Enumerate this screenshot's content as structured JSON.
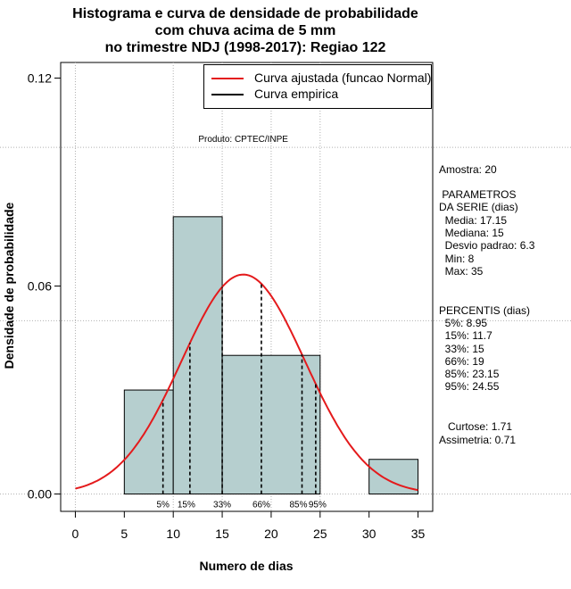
{
  "chart_data": {
    "type": "histogram",
    "title_lines": [
      "Histograma e curva de densidade de probabilidade",
      "com chuva acima de 5 mm",
      "no trimestre NDJ (1998-2017): Regiao 122"
    ],
    "xlabel": "Numero de dias",
    "ylabel": "Densidade de probabilidade",
    "xlim": [
      -1.5,
      36.5
    ],
    "ylim": [
      -0.005,
      0.1245
    ],
    "xticks": [
      0,
      5,
      10,
      15,
      20,
      25,
      30,
      35
    ],
    "yticks": [
      0.0,
      0.06,
      0.12
    ],
    "ytick_labels": [
      "0.00",
      "0.06",
      "0.12"
    ],
    "gridlines_x": [
      0,
      10,
      15,
      20,
      25
    ],
    "gridlines_y": [
      0.0,
      0.05,
      0.1
    ],
    "bins": [
      {
        "x0": 5,
        "x1": 10,
        "density": 0.03
      },
      {
        "x0": 10,
        "x1": 15,
        "density": 0.08
      },
      {
        "x0": 15,
        "x1": 25,
        "density": 0.04
      },
      {
        "x0": 30,
        "x1": 35,
        "density": 0.01
      }
    ],
    "normal_fit": {
      "mean": 17.15,
      "sd": 6.3,
      "x_range": [
        0,
        35
      ]
    },
    "percentile_lines": [
      {
        "label": "5%",
        "x": 8.95
      },
      {
        "label": "15%",
        "x": 11.7
      },
      {
        "label": "33%",
        "x": 15
      },
      {
        "label": "66%",
        "x": 19
      },
      {
        "label": "85%",
        "x": 23.15
      },
      {
        "label": "95%",
        "x": 24.55
      }
    ],
    "product_note": "Produto: CPTEC/INPE",
    "legend": [
      {
        "label": "Curva ajustada (funcao Normal)",
        "color": "#e41a1c"
      },
      {
        "label": "Curva empirica",
        "color": "#000000"
      }
    ],
    "colors": {
      "bar_fill": "#b6cfcf",
      "curve": "#e41a1c",
      "grid": "#b0b0b0"
    }
  },
  "stats_panel": {
    "sample": "Amostra: 20",
    "params_title_1": " PARAMETROS",
    "params_title_2": "DA SERIE (dias)",
    "params": [
      "  Media: 17.15",
      "  Mediana: 15",
      "  Desvio padrao: 6.3",
      "  Min: 8",
      "  Max: 35"
    ],
    "percentis_title": "PERCENTIS (dias)",
    "percentis": [
      "  5%: 8.95",
      "  15%: 11.7",
      "  33%: 15",
      "  66%: 19",
      "  85%: 23.15",
      "  95%: 24.55"
    ],
    "curtose": "   Curtose: 1.71",
    "assimetria": "Assimetria: 0.71"
  }
}
